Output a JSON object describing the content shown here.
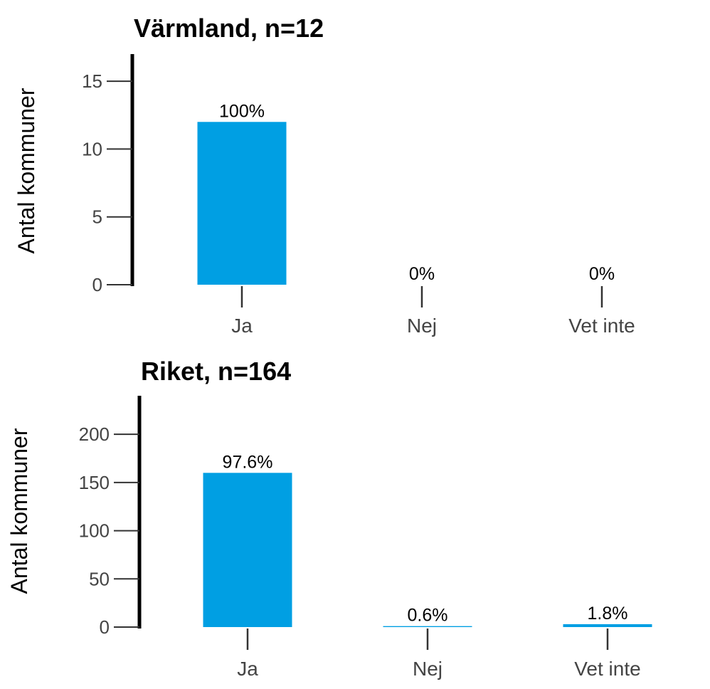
{
  "chart_data": [
    {
      "type": "bar",
      "title": "Värmland, n=12",
      "ylabel": "Antal kommuner",
      "xlabel": "",
      "categories": [
        "Ja",
        "Nej",
        "Vet inte"
      ],
      "values": [
        12,
        0,
        0
      ],
      "data_labels": [
        "100%",
        "0%",
        "0%"
      ],
      "yticks": [
        0,
        5,
        10,
        15
      ],
      "ylim": [
        0,
        17
      ],
      "color": "#009fe3",
      "grid": false,
      "legend": "none"
    },
    {
      "type": "bar",
      "title": "Riket, n=164",
      "ylabel": "Antal kommuner",
      "xlabel": "",
      "categories": [
        "Ja",
        "Nej",
        "Vet inte"
      ],
      "values": [
        160,
        1,
        3
      ],
      "data_labels": [
        "97.6%",
        "0.6%",
        "1.8%"
      ],
      "yticks": [
        0,
        50,
        100,
        150,
        200
      ],
      "ylim": [
        0,
        240
      ],
      "color": "#009fe3",
      "grid": false,
      "legend": "none"
    }
  ]
}
